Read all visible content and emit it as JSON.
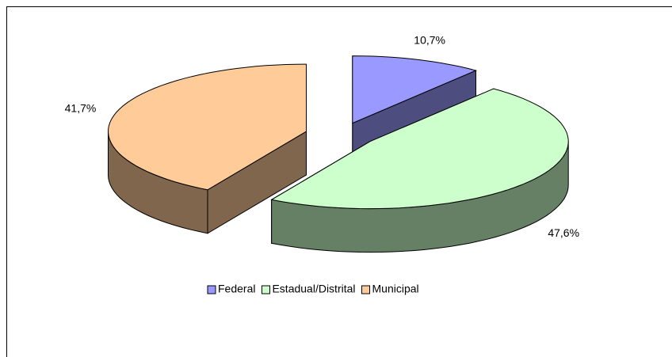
{
  "chart_data": {
    "type": "pie3d",
    "categories": [
      "Federal",
      "Estadual/Distrital",
      "Municipal"
    ],
    "values": [
      10.7,
      47.6,
      41.7
    ],
    "value_labels": [
      "10,7%",
      "47,6%",
      "41,7%"
    ],
    "colors": [
      "#9999ff",
      "#ccffcc",
      "#ffcc99"
    ],
    "legend": "bottom"
  }
}
